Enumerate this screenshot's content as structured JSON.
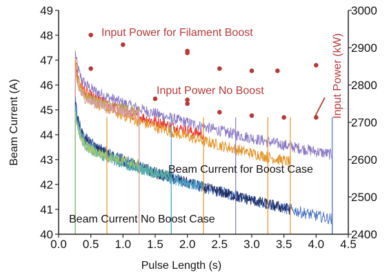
{
  "chart_data": {
    "type": "line",
    "title": "",
    "xlabel": "Pulse Length (s)",
    "ylabel": "Beam Current (A)",
    "y2label": "Input Power (kW)",
    "xlim": [
      0.0,
      4.5
    ],
    "ylim": [
      40,
      49
    ],
    "y2lim": [
      2400,
      3000
    ],
    "xticks": [
      "0.0",
      "0.5",
      "1.0",
      "1.5",
      "2.0",
      "2.5",
      "3.0",
      "3.5",
      "4.0",
      "4.5"
    ],
    "yticks": [
      "40",
      "41",
      "42",
      "43",
      "44",
      "45",
      "46",
      "47",
      "48",
      "49"
    ],
    "y2ticks": [
      "2400",
      "2500",
      "2600",
      "2700",
      "2800",
      "2900",
      "3000"
    ],
    "grid": false,
    "annotations": [
      {
        "key": "ann_filament",
        "text": "Input Power for Filament Boost",
        "color": "#b43a3a"
      },
      {
        "key": "ann_noboost_power",
        "text": "Input Power No Boost",
        "color": "#b43a3a"
      },
      {
        "key": "ann_boost_current",
        "text": "Beam Current for Boost Case",
        "color": "#111111"
      },
      {
        "key": "ann_noboost_current",
        "text": "Beam Current No Boost Case",
        "color": "#111111"
      }
    ],
    "series": [
      {
        "kind": "current",
        "color": "#8a78c2",
        "t_end": 4.25,
        "v0": 47.3,
        "v1": 46.4,
        "v_end": 43.2,
        "pulse_start": 0.26
      },
      {
        "kind": "current",
        "color": "#e83030",
        "t_end": 2.25,
        "v0": 47.0,
        "v1": 46.1,
        "v_end": 44.0,
        "pulse_start": 0.26
      },
      {
        "kind": "current",
        "color": "#e2952a",
        "t_end": 3.6,
        "v0": 46.9,
        "v1": 46.0,
        "v_end": 42.9,
        "pulse_start": 0.26
      },
      {
        "kind": "current",
        "color": "#b9a64a",
        "t_end": 1.25,
        "v0": 46.6,
        "v1": 45.8,
        "v_end": 44.9,
        "pulse_start": 0.26
      },
      {
        "kind": "current",
        "color": "#d4a0a8",
        "t_end": 1.25,
        "v0": 46.5,
        "v1": 45.7,
        "v_end": 44.8,
        "pulse_start": 0.26
      },
      {
        "kind": "current",
        "color": "#4a74c0",
        "t_end": 4.25,
        "v0": 45.4,
        "v1": 44.3,
        "v_end": 40.6,
        "pulse_start": 0.26
      },
      {
        "kind": "current",
        "color": "#1f2a5c",
        "t_end": 3.6,
        "v0": 45.3,
        "v1": 44.2,
        "v_end": 41.0,
        "pulse_start": 0.26
      },
      {
        "kind": "current",
        "color": "#4aa0c8",
        "t_end": 2.25,
        "v0": 45.2,
        "v1": 44.0,
        "v_end": 41.9,
        "pulse_start": 0.26
      },
      {
        "kind": "current",
        "color": "#5ab0a0",
        "t_end": 1.75,
        "v0": 45.0,
        "v1": 43.9,
        "v_end": 42.3,
        "pulse_start": 0.26
      },
      {
        "kind": "current",
        "color": "#a8c870",
        "t_end": 1.25,
        "v0": 44.9,
        "v1": 43.8,
        "v_end": 42.8,
        "pulse_start": 0.26
      }
    ],
    "pulse_markers": [
      {
        "x": 0.75,
        "color": "#e2952a"
      },
      {
        "x": 1.25,
        "color": "#d4a0a8"
      },
      {
        "x": 1.75,
        "color": "#4aa0c8"
      },
      {
        "x": 2.25,
        "color": "#e2952a"
      },
      {
        "x": 2.75,
        "color": "#8a78c2"
      },
      {
        "x": 3.25,
        "color": "#e2952a"
      },
      {
        "x": 3.6,
        "color": "#e2952a"
      },
      {
        "x": 4.25,
        "color": "#4a74c0"
      }
    ],
    "power_points": {
      "color": "#b43a3a",
      "filament_boost": [
        {
          "x": 0.5,
          "y": 2934
        },
        {
          "x": 1.0,
          "y": 2908
        },
        {
          "x": 2.0,
          "y": 2891
        },
        {
          "x": 2.0,
          "y": 2886
        },
        {
          "x": 2.5,
          "y": 2844
        },
        {
          "x": 3.0,
          "y": 2838
        },
        {
          "x": 3.4,
          "y": 2838
        },
        {
          "x": 4.0,
          "y": 2853
        }
      ],
      "no_boost": [
        {
          "x": 0.5,
          "y": 2844
        },
        {
          "x": 1.5,
          "y": 2763
        },
        {
          "x": 2.0,
          "y": 2760
        },
        {
          "x": 2.0,
          "y": 2750
        },
        {
          "x": 2.5,
          "y": 2727
        },
        {
          "x": 3.0,
          "y": 2718
        },
        {
          "x": 3.5,
          "y": 2713
        },
        {
          "x": 4.0,
          "y": 2713
        }
      ]
    }
  }
}
